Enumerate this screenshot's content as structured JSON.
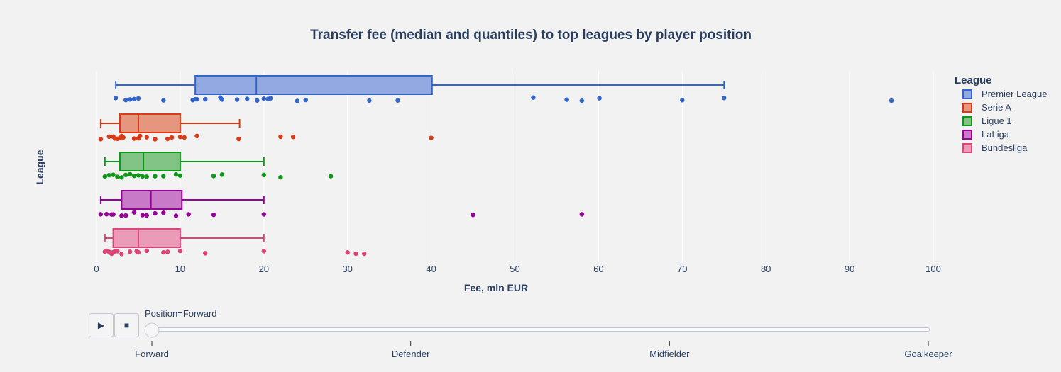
{
  "chart_data": {
    "type": "box",
    "title": "Transfer fee (median and quantiles) to top leagues by player position",
    "xlabel": "Fee, mln EUR",
    "ylabel": "League",
    "xlim": [
      0,
      100
    ],
    "xticks": [
      0,
      10,
      20,
      30,
      40,
      50,
      60,
      70,
      80,
      90,
      100
    ],
    "grid": true,
    "orientation": "horizontal",
    "legend": {
      "title": "League",
      "placement": "top-right"
    },
    "series": [
      {
        "name": "Premier League",
        "color": "#3366cc",
        "fill": "#93a9e1",
        "lowerfence": 2.3,
        "q1": 11.8,
        "median": 19.1,
        "q3": 40.1,
        "upperfence": 75,
        "points": [
          2.3,
          3.5,
          4.0,
          4.5,
          5.0,
          8.0,
          11.5,
          11.8,
          12.0,
          13.0,
          14.8,
          15.0,
          16.8,
          18.0,
          19.2,
          20.0,
          20.5,
          20.8,
          24.0,
          25.0,
          32.6,
          36.0,
          52.2,
          56.2,
          58.0,
          60.1,
          70.0,
          75.0,
          95.0
        ]
      },
      {
        "name": "Serie A",
        "color": "#dc3912",
        "fill": "#e6957f",
        "lowerfence": 0.5,
        "q1": 2.8,
        "median": 5.0,
        "q3": 10.0,
        "upperfence": 17.1,
        "points": [
          0.5,
          1.5,
          2.0,
          2.2,
          2.5,
          2.8,
          3.0,
          3.2,
          4.5,
          5.0,
          5.2,
          6.0,
          7.0,
          8.5,
          9.0,
          10.0,
          10.5,
          12.0,
          17.0,
          22.0,
          23.5,
          40.0
        ]
      },
      {
        "name": "Ligue 1",
        "color": "#109618",
        "fill": "#82c486",
        "lowerfence": 1.0,
        "q1": 2.8,
        "median": 5.6,
        "q3": 10.0,
        "upperfence": 20.0,
        "points": [
          1.0,
          1.5,
          2.0,
          2.5,
          3.0,
          3.5,
          4.0,
          4.5,
          5.0,
          5.5,
          6.0,
          7.0,
          8.0,
          9.5,
          10.0,
          14.0,
          15.0,
          20.0,
          22.0,
          28.0
        ]
      },
      {
        "name": "LaLiga",
        "color": "#990099",
        "fill": "#c87ac8",
        "lowerfence": 0.5,
        "q1": 3.0,
        "median": 6.5,
        "q3": 10.2,
        "upperfence": 20.0,
        "points": [
          0.5,
          1.2,
          1.8,
          2.0,
          3.0,
          3.5,
          4.5,
          5.5,
          6.0,
          7.0,
          8.0,
          9.5,
          11.0,
          14.0,
          20.0,
          45.0,
          58.0
        ]
      },
      {
        "name": "Bundesliga",
        "color": "#dd4477",
        "fill": "#eb9bb7",
        "lowerfence": 1.0,
        "q1": 2.0,
        "median": 5.0,
        "q3": 10.0,
        "upperfence": 20.0,
        "points": [
          1.0,
          1.2,
          1.5,
          1.8,
          2.0,
          2.2,
          2.5,
          3.0,
          4.0,
          4.8,
          5.0,
          6.0,
          8.0,
          8.5,
          10.0,
          13.0,
          20.0,
          30.0,
          31.0,
          32.0
        ]
      }
    ]
  },
  "animation": {
    "current_label": "Position=Forward",
    "play_label": "▶",
    "stop_label": "■",
    "steps": [
      "Forward",
      "Defender",
      "Midfielder",
      "Goalkeeper"
    ],
    "active_step": 0
  }
}
